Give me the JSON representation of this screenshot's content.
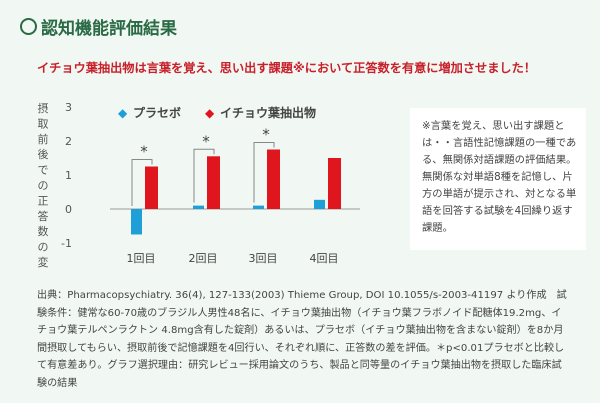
{
  "title": "認知機能評価結果",
  "headline": "イチョウ葉抽出物は言葉を覚え、思い出す課題※において正答数を有意に増加させました！",
  "chart_data": {
    "type": "bar",
    "ylabel": "摂取前後での正答数の変化",
    "ylim": [
      -1,
      3
    ],
    "yticks": [
      "3",
      "2",
      "1",
      "0",
      "-1"
    ],
    "categories": [
      "1回目",
      "2回目",
      "3回目",
      "4回目"
    ],
    "series": [
      {
        "name": "プラセボ",
        "color": "#1e9fd8",
        "marker": "◆",
        "values": [
          -0.75,
          0.1,
          0.1,
          0.27
        ]
      },
      {
        "name": "イチョウ葉抽出物",
        "color": "#e0161e",
        "marker": "◆",
        "values": [
          1.25,
          1.55,
          1.75,
          1.5
        ]
      }
    ],
    "significance": [
      {
        "category": "1回目",
        "label": "*"
      },
      {
        "category": "2回目",
        "label": "*"
      },
      {
        "category": "3回目",
        "label": "*"
      }
    ]
  },
  "note": "※言葉を覚え、思い出す課題とは・・言語性記憶課題の一種である、無関係対語課題の評価結果。無関係な対単語8種を記憶し、片方の単語が提示され、対となる単語を回答する試験を4回繰り返す課題。",
  "footer": "出典：Pharmacopsychiatry. 36(4), 127-133(2003) Thieme Group, DOI 10.1055/s-2003-41197 より作成　試験条件：健常な60-70歳のブラジル人男性48名に、イチョウ葉抽出物（イチョウ葉フラボノイド配糖体19.2mg、イチョウ葉テルペンラクトン 4.8mg含有した錠剤）あるいは、プラセボ（イチョウ葉抽出物を含まない錠剤）を8か月間摂取してもらい、摂取前後で記憶課題を4回行い、それぞれ順に、正答数の差を評価。＊p<0.01プラセボと比較して有意差あり。グラフ選択理由：研究レビュー採用論文のうち、製品と同等量のイチョウ葉抽出物を摂取した臨床試験の結果"
}
